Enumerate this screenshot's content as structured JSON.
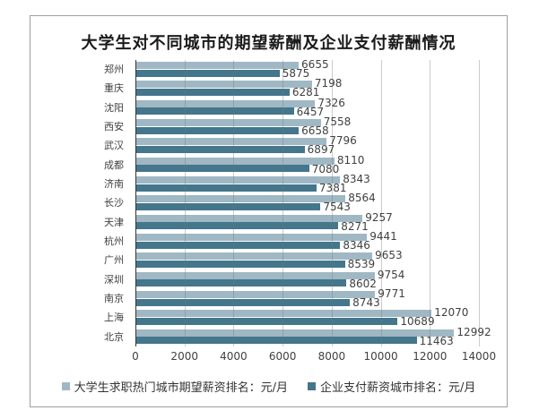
{
  "chart_data": {
    "type": "bar",
    "orientation": "horizontal",
    "title": "大学生对不同城市的期望薪酬及企业支付薪酬情况",
    "categories": [
      "郑州",
      "重庆",
      "沈阳",
      "西安",
      "武汉",
      "成都",
      "济南",
      "长沙",
      "天津",
      "杭州",
      "广州",
      "深圳",
      "南京",
      "上海",
      "北京"
    ],
    "series": [
      {
        "name": "大学生求职热门城市期望薪资排名：元/月",
        "color": "#9fb8c4",
        "values": [
          6655,
          7198,
          7326,
          7558,
          7796,
          8110,
          8343,
          8564,
          9257,
          9441,
          9653,
          9754,
          9771,
          12070,
          12992
        ]
      },
      {
        "name": "企业支付薪资城市排名：元/月",
        "color": "#44768c",
        "values": [
          5875,
          6281,
          6457,
          6658,
          6897,
          7080,
          7381,
          7543,
          8271,
          8346,
          8539,
          8602,
          8743,
          10689,
          11463
        ]
      }
    ],
    "xlim": [
      0,
      14000
    ],
    "x_ticks": [
      "0",
      "2000",
      "4000",
      "6000",
      "8000",
      "10000",
      "12000",
      "14000"
    ],
    "grid": "vertical",
    "legend_position": "bottom",
    "data_labels": true
  },
  "legend": {
    "items": [
      {
        "label": "大学生求职热门城市期望薪资排名：元/月"
      },
      {
        "label": "企业支付薪资城市排名：元/月"
      }
    ]
  }
}
